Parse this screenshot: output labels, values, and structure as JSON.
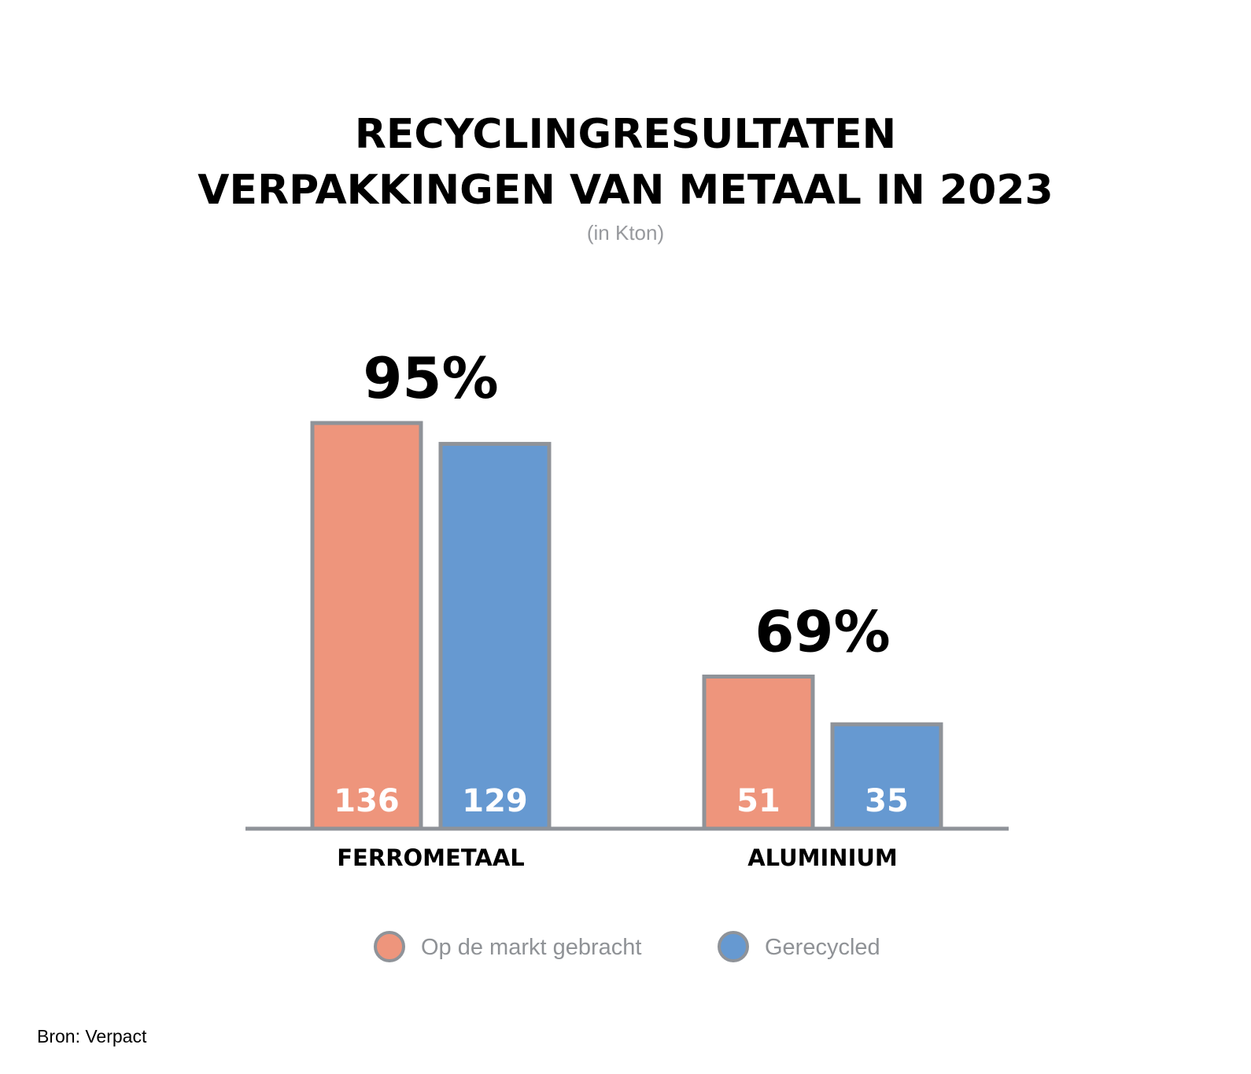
{
  "chart_data": {
    "type": "bar",
    "title_lines": [
      "RECYCLINGRESULTATEN",
      "VERPAKKINGEN VAN METAAL IN 2023"
    ],
    "subtitle": "(in Kton)",
    "categories": [
      "FERROMETAAL",
      "ALUMINIUM"
    ],
    "series": [
      {
        "name": "Op de markt gebracht",
        "values": [
          136,
          51
        ],
        "color": "#ee957c"
      },
      {
        "name": "Gerecycled",
        "values": [
          129,
          35
        ],
        "color": "#6699d1"
      }
    ],
    "percentages": [
      "95%",
      "69%"
    ],
    "data_labels": [
      [
        "136",
        "129"
      ],
      [
        "51",
        "35"
      ]
    ],
    "bar_border_color": "#8f9399",
    "axis_color": "#8f9399",
    "ylim": [
      0,
      136
    ],
    "grid": false,
    "legend_position": "bottom-center",
    "source": "Bron: Verpact"
  }
}
